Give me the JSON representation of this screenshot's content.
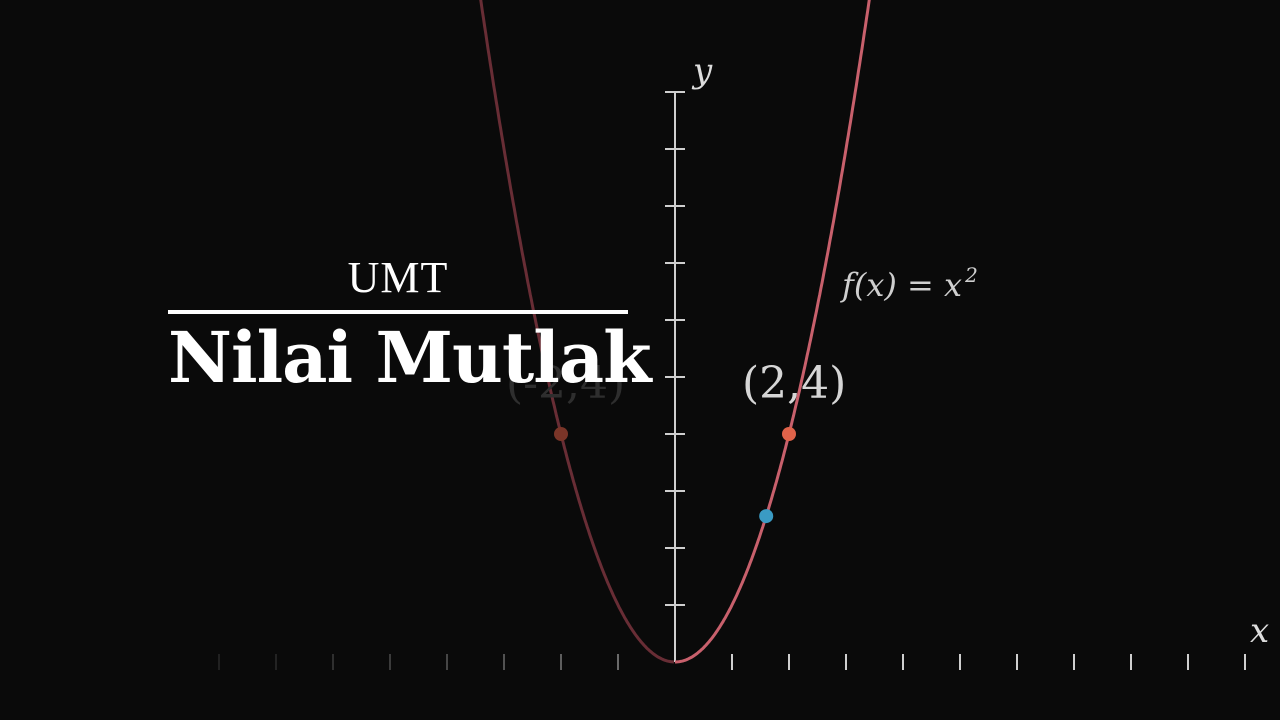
{
  "title_card": {
    "kicker": "UMT",
    "headline": "Nilai Mutlak"
  },
  "chart_data": {
    "type": "line",
    "function_label": "f(x) = x²",
    "function_label_main": "f(x) = x",
    "function_label_exp": "2",
    "xlabel": "x",
    "ylabel": "y",
    "xlim": [
      -8,
      10
    ],
    "ylim": [
      0,
      10
    ],
    "series": [
      {
        "name": "f(x) = x²",
        "x": [
          -3,
          -2.5,
          -2,
          -1.5,
          -1,
          -0.5,
          0,
          0.5,
          1,
          1.5,
          2,
          2.5,
          3.5
        ],
        "y": [
          9,
          6.25,
          4,
          2.25,
          1,
          0.25,
          0,
          0.25,
          1,
          2.25,
          4,
          6.25,
          12.25
        ]
      }
    ],
    "points": [
      {
        "label": "(2,4)",
        "x": 2,
        "y": 4,
        "color": "#e0634a"
      },
      {
        "label": "(-2,4)",
        "x": -2,
        "y": 4,
        "color": "#7a3528"
      },
      {
        "label": "",
        "x": 1.6,
        "y": 2.56,
        "color": "#3a9bc4"
      }
    ]
  },
  "colors": {
    "background": "#0a0a0a",
    "curve": "#c8606c",
    "axis": "#cfcfcf"
  }
}
